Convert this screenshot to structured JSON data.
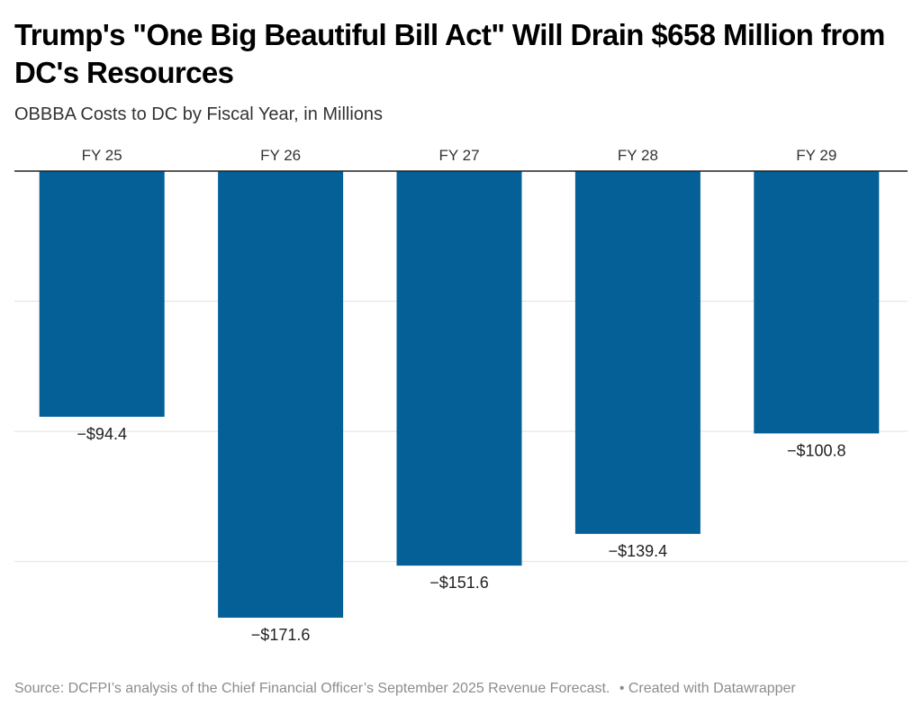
{
  "header": {
    "title": "Trump's \"One Big Beautiful Bill Act\" Will Drain $658 Million from DC's Resources",
    "subtitle": "OBBBA Costs to DC by Fiscal Year, in Millions"
  },
  "footer": {
    "source": "Source: DCFPI’s analysis of the Chief Financial Officer’s September 2025 Revenue Forecast.",
    "separator": "•",
    "credit": "Created with Datawrapper"
  },
  "colors": {
    "bar": "#046096",
    "baseline": "#222222",
    "grid": "#e6e6e6"
  },
  "chart_data": {
    "type": "bar",
    "title": "Trump's \"One Big Beautiful Bill Act\" Will Drain $658 Million from DC's Resources",
    "subtitle": "OBBBA Costs to DC by Fiscal Year, in Millions",
    "xlabel": "",
    "ylabel": "",
    "categories": [
      "FY 25",
      "FY 26",
      "FY 27",
      "FY 28",
      "FY 29"
    ],
    "values": [
      -94.4,
      -171.6,
      -151.6,
      -139.4,
      -100.8
    ],
    "data_labels": [
      "−$94.4",
      "−$171.6",
      "−$151.6",
      "−$139.4",
      "−$100.8"
    ],
    "ylim": [
      -180,
      0
    ],
    "gridlines": [
      0,
      -50,
      -100,
      -150
    ],
    "grid": true,
    "category_axis_position": "top",
    "legend": "none"
  }
}
